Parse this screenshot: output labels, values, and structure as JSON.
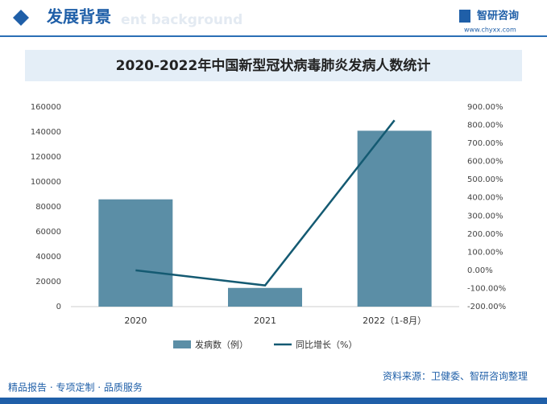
{
  "header": {
    "title": "发展背景",
    "subtitle": "ent background",
    "brand": "智研咨询",
    "site": "www.chyxx.com"
  },
  "chart_data": {
    "type": "bar_line",
    "title": "2020-2022年中国新型冠状病毒肺炎发病人数统计",
    "categories": [
      "2020",
      "2021",
      "2022（1-8月）"
    ],
    "series": [
      {
        "name": "发病数（例）",
        "type": "bar",
        "color": "#5b8ea6",
        "values": [
          86000,
          15000,
          141000
        ]
      },
      {
        "name": "同比增长（%）",
        "type": "line",
        "axis": "y2",
        "color": "#145a72",
        "values": [
          0,
          -83,
          827
        ]
      }
    ],
    "ylim": [
      0,
      160000
    ],
    "yticks": [
      0,
      20000,
      40000,
      60000,
      80000,
      100000,
      120000,
      140000,
      160000
    ],
    "y2lim": [
      -200,
      900
    ],
    "y2ticks": [
      {
        "value": -200,
        "label": "-200.00%"
      },
      {
        "value": -100,
        "label": "-100.00%"
      },
      {
        "value": 0,
        "label": "0.00%"
      },
      {
        "value": 100,
        "label": "100.00%"
      },
      {
        "value": 200,
        "label": "200.00%"
      },
      {
        "value": 300,
        "label": "300.00%"
      },
      {
        "value": 400,
        "label": "400.00%"
      },
      {
        "value": 500,
        "label": "500.00%"
      },
      {
        "value": 600,
        "label": "600.00%"
      },
      {
        "value": 700,
        "label": "700.00%"
      },
      {
        "value": 800,
        "label": "800.00%"
      },
      {
        "value": 900,
        "label": "900.00%"
      }
    ],
    "legend": "bottom"
  },
  "footer": {
    "slogan": "精品报告 · 专项定制 · 品质服务",
    "source": "资料来源：卫健委、智研咨询整理"
  }
}
